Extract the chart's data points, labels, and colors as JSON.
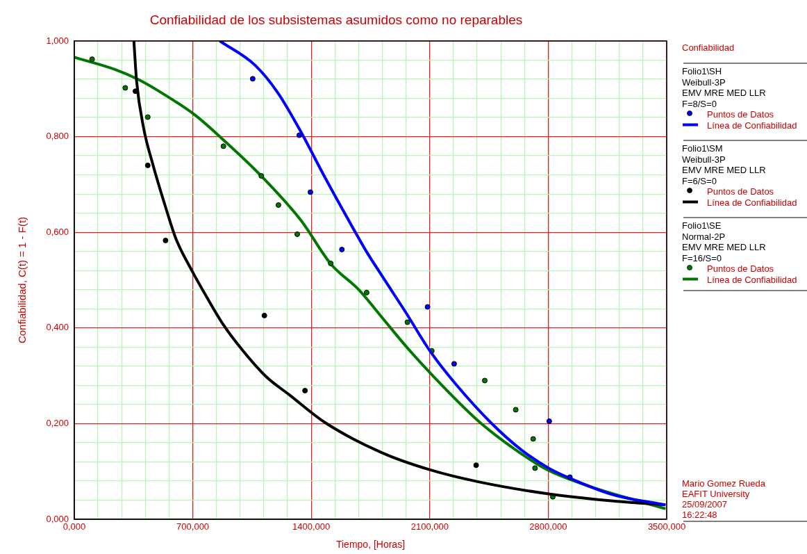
{
  "chart_data": {
    "type": "scatter",
    "title": "Confiabilidad de los subsistemas asumidos como no reparables",
    "xlabel": "Tiempo, [Horas]",
    "ylabel": "Confiabilidad, C(t) = 1 - F(t)",
    "legend_title": "Confiabilidad",
    "legend": "right",
    "grid": true,
    "marker": "circle",
    "xlim": [
      0,
      3500
    ],
    "ylim": [
      0,
      1
    ],
    "xticks": [
      {
        "value": 0,
        "label": "0,000"
      },
      {
        "value": 140,
        "label": null
      },
      {
        "value": 280,
        "label": null
      },
      {
        "value": 420,
        "label": null
      },
      {
        "value": 560,
        "label": null
      },
      {
        "value": 700,
        "label": "700,000"
      },
      {
        "value": 840,
        "label": null
      },
      {
        "value": 980,
        "label": null
      },
      {
        "value": 1120,
        "label": null
      },
      {
        "value": 1260,
        "label": null
      },
      {
        "value": 1400,
        "label": "1400,000"
      },
      {
        "value": 1540,
        "label": null
      },
      {
        "value": 1680,
        "label": null
      },
      {
        "value": 1820,
        "label": null
      },
      {
        "value": 1960,
        "label": null
      },
      {
        "value": 2100,
        "label": "2100,000"
      },
      {
        "value": 2240,
        "label": null
      },
      {
        "value": 2380,
        "label": null
      },
      {
        "value": 2520,
        "label": null
      },
      {
        "value": 2660,
        "label": null
      },
      {
        "value": 2800,
        "label": "2800,000"
      },
      {
        "value": 2940,
        "label": null
      },
      {
        "value": 3080,
        "label": null
      },
      {
        "value": 3220,
        "label": null
      },
      {
        "value": 3360,
        "label": null
      },
      {
        "value": 3500,
        "label": "3500,000"
      }
    ],
    "yticks": [
      {
        "value": 0,
        "label": "0,000"
      },
      {
        "value": 0.04,
        "label": null
      },
      {
        "value": 0.08,
        "label": null
      },
      {
        "value": 0.12,
        "label": null
      },
      {
        "value": 0.16,
        "label": null
      },
      {
        "value": 0.2,
        "label": "0,200"
      },
      {
        "value": 0.24,
        "label": null
      },
      {
        "value": 0.28,
        "label": null
      },
      {
        "value": 0.32,
        "label": null
      },
      {
        "value": 0.36,
        "label": null
      },
      {
        "value": 0.4,
        "label": "0,400"
      },
      {
        "value": 0.44,
        "label": null
      },
      {
        "value": 0.48,
        "label": null
      },
      {
        "value": 0.52,
        "label": null
      },
      {
        "value": 0.56,
        "label": null
      },
      {
        "value": 0.6,
        "label": "0,600"
      },
      {
        "value": 0.64,
        "label": null
      },
      {
        "value": 0.68,
        "label": null
      },
      {
        "value": 0.72,
        "label": null
      },
      {
        "value": 0.76,
        "label": null
      },
      {
        "value": 0.8,
        "label": "0,800"
      },
      {
        "value": 0.84,
        "label": null
      },
      {
        "value": 0.88,
        "label": null
      },
      {
        "value": 0.92,
        "label": null
      },
      {
        "value": 0.96,
        "label": null
      },
      {
        "value": 1,
        "label": "1,000"
      }
    ],
    "annotations": [
      "Folio1\\SH",
      "Weibull-3P",
      "EMV MRE MED LLR",
      "F=8/S=0",
      "Folio1\\SM",
      "Weibull-3P",
      "EMV MRE MED LLR",
      "F=6/S=0",
      "Folio1\\SE",
      "Normal-2P",
      "EMV MRE MED LLR",
      "F=16/S=0",
      "Mario Gomez Rueda",
      "EAFIT University",
      "25/09/2007",
      "16:22:48"
    ],
    "series": [
      {
        "name": "Puntos de Datos",
        "type": "scatter",
        "color": "#0000ff",
        "x": [
          1054,
          1329,
          1395,
          1581,
          2087,
          2244,
          2806,
          2928
        ],
        "values": [
          0.921,
          0.803,
          0.684,
          0.564,
          0.444,
          0.325,
          0.205,
          0.088
        ]
      },
      {
        "name": "Línea de Confiabilidad",
        "type": "line",
        "marker": "none",
        "color": "#0000ff",
        "x": [
          860,
          1066,
          1202,
          1339,
          1476,
          1613,
          1729,
          1818,
          1954,
          2105,
          2255,
          2464,
          2638,
          2802,
          2980,
          3185,
          3493
        ],
        "values": [
          1.0,
          0.95,
          0.892,
          0.81,
          0.718,
          0.63,
          0.558,
          0.509,
          0.435,
          0.35,
          0.282,
          0.201,
          0.146,
          0.107,
          0.078,
          0.051,
          0.03
        ]
      },
      {
        "name": "Puntos de Datos",
        "type": "scatter",
        "color": "#000000",
        "x": [
          361,
          434,
          539,
          1123,
          1363,
          2374
        ],
        "values": [
          0.895,
          0.74,
          0.583,
          0.426,
          0.269,
          0.113
        ]
      },
      {
        "name": "Línea de Confiabilidad",
        "type": "line",
        "marker": "none",
        "color": "#000000",
        "x": [
          352,
          368,
          409,
          464,
          546,
          600,
          696,
          785,
          882,
          997,
          1134,
          1271,
          1482,
          1818,
          2105,
          2392,
          2802,
          3185,
          3493
        ],
        "values": [
          1.0,
          0.916,
          0.819,
          0.742,
          0.645,
          0.587,
          0.519,
          0.463,
          0.406,
          0.352,
          0.298,
          0.26,
          0.202,
          0.139,
          0.103,
          0.078,
          0.053,
          0.038,
          0.03
        ]
      },
      {
        "name": "Puntos de Datos",
        "type": "scatter",
        "color": "#007700",
        "x": [
          105,
          301,
          434,
          881,
          1105,
          1206,
          1317,
          1515,
          1727,
          1968,
          2112,
          2425,
          2608,
          2711,
          2722,
          2827
        ],
        "values": [
          0.962,
          0.902,
          0.841,
          0.78,
          0.718,
          0.657,
          0.596,
          0.535,
          0.474,
          0.412,
          0.352,
          0.29,
          0.229,
          0.168,
          0.107,
          0.047
        ]
      },
      {
        "name": "Línea de Confiabilidad",
        "type": "line",
        "marker": "none",
        "color": "#007700",
        "x": [
          0,
          245,
          382,
          546,
          710,
          860,
          1093,
          1339,
          1517,
          1681,
          1818,
          1954,
          2105,
          2392,
          2666,
          2802,
          3049,
          3493
        ],
        "values": [
          0.966,
          0.94,
          0.919,
          0.885,
          0.846,
          0.8,
          0.722,
          0.625,
          0.533,
          0.48,
          0.422,
          0.364,
          0.305,
          0.204,
          0.131,
          0.102,
          0.068,
          0.022
        ]
      }
    ]
  }
}
